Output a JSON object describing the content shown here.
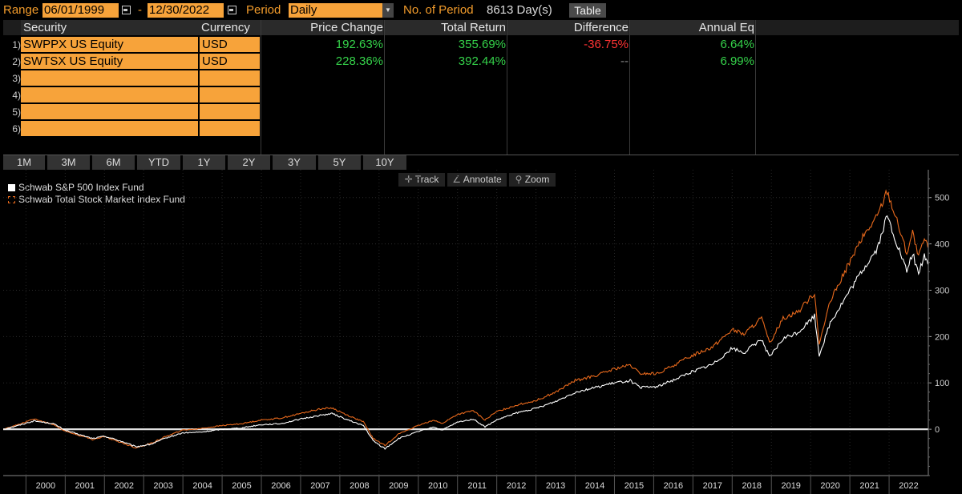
{
  "topbar": {
    "range_label": "Range",
    "start_date": "06/01/1999",
    "dash": "-",
    "end_date": "12/30/2022",
    "period_label": "Period",
    "period_value": "Daily",
    "num_period_label": "No. of Period",
    "num_period_value": "8613 Day(s)",
    "table_button": "Table"
  },
  "table": {
    "headers": [
      "Security",
      "Currency",
      "Price Change",
      "Total Return",
      "Difference",
      "Annual Eq"
    ],
    "rows": [
      {
        "num": "1)",
        "security": "SWPPX US Equity",
        "currency": "USD",
        "price_change": "192.63%",
        "total_return": "355.69%",
        "difference": "-36.75%",
        "annual_eq": "6.64%"
      },
      {
        "num": "2)",
        "security": "SWTSX US Equity",
        "currency": "USD",
        "price_change": "228.36%",
        "total_return": "392.44%",
        "difference": "--",
        "annual_eq": "6.99%"
      },
      {
        "num": "3)",
        "security": "",
        "currency": ""
      },
      {
        "num": "4)",
        "security": "",
        "currency": ""
      },
      {
        "num": "5)",
        "security": "",
        "currency": ""
      },
      {
        "num": "6)",
        "security": "",
        "currency": ""
      }
    ]
  },
  "period_buttons": [
    "1M",
    "3M",
    "6M",
    "YTD",
    "1Y",
    "2Y",
    "3Y",
    "5Y",
    "10Y"
  ],
  "chart_tools": {
    "track": "Track",
    "annotate": "Annotate",
    "zoom": "Zoom"
  },
  "colors": {
    "orange": "#f7a33a",
    "line_white": "#ffffff",
    "line_orange": "#e8691c",
    "green": "#35d24a",
    "red": "#ff3333"
  },
  "chart_data": {
    "type": "line",
    "title": "",
    "ylabel": "",
    "xlabel": "",
    "ylim": [
      -100,
      560
    ],
    "xlim": [
      1999.42,
      2023.0
    ],
    "yticks": [
      0,
      100,
      200,
      300,
      400,
      500
    ],
    "xticks": [
      "2000",
      "2001",
      "2002",
      "2003",
      "2004",
      "2005",
      "2006",
      "2007",
      "2008",
      "2009",
      "2010",
      "2011",
      "2012",
      "2013",
      "2014",
      "2015",
      "2016",
      "2017",
      "2018",
      "2019",
      "2020",
      "2021",
      "2022"
    ],
    "legend_position": "top-left",
    "series": [
      {
        "name": "Schwab S&P 500 Index Fund",
        "color": "#ffffff",
        "points": [
          [
            1999.42,
            0
          ],
          [
            1999.8,
            8
          ],
          [
            2000.2,
            18
          ],
          [
            2000.7,
            12
          ],
          [
            2001.0,
            -2
          ],
          [
            2001.3,
            -10
          ],
          [
            2001.7,
            -20
          ],
          [
            2002.0,
            -15
          ],
          [
            2002.4,
            -25
          ],
          [
            2002.8,
            -38
          ],
          [
            2003.2,
            -32
          ],
          [
            2003.6,
            -18
          ],
          [
            2004.0,
            -8
          ],
          [
            2004.5,
            -6
          ],
          [
            2005.0,
            0
          ],
          [
            2005.5,
            3
          ],
          [
            2006.0,
            10
          ],
          [
            2006.5,
            12
          ],
          [
            2007.0,
            22
          ],
          [
            2007.5,
            30
          ],
          [
            2007.8,
            34
          ],
          [
            2008.2,
            20
          ],
          [
            2008.6,
            8
          ],
          [
            2008.85,
            -25
          ],
          [
            2009.15,
            -42
          ],
          [
            2009.5,
            -20
          ],
          [
            2010.0,
            -5
          ],
          [
            2010.4,
            5
          ],
          [
            2010.6,
            -2
          ],
          [
            2011.0,
            15
          ],
          [
            2011.4,
            22
          ],
          [
            2011.7,
            5
          ],
          [
            2012.0,
            20
          ],
          [
            2012.5,
            35
          ],
          [
            2013.0,
            45
          ],
          [
            2013.5,
            60
          ],
          [
            2014.0,
            80
          ],
          [
            2014.5,
            90
          ],
          [
            2015.0,
            100
          ],
          [
            2015.4,
            105
          ],
          [
            2015.65,
            90
          ],
          [
            2016.1,
            92
          ],
          [
            2016.6,
            110
          ],
          [
            2017.0,
            125
          ],
          [
            2017.5,
            140
          ],
          [
            2018.0,
            175
          ],
          [
            2018.3,
            165
          ],
          [
            2018.75,
            195
          ],
          [
            2018.95,
            155
          ],
          [
            2019.3,
            195
          ],
          [
            2019.7,
            210
          ],
          [
            2020.1,
            245
          ],
          [
            2020.22,
            160
          ],
          [
            2020.5,
            230
          ],
          [
            2020.9,
            285
          ],
          [
            2021.3,
            340
          ],
          [
            2021.7,
            390
          ],
          [
            2021.95,
            460
          ],
          [
            2022.2,
            400
          ],
          [
            2022.45,
            340
          ],
          [
            2022.6,
            380
          ],
          [
            2022.75,
            335
          ],
          [
            2022.9,
            375
          ],
          [
            2022.99,
            356
          ]
        ]
      },
      {
        "name": "Schwab Total Stock Market Index Fund",
        "color": "#e8691c",
        "points": [
          [
            1999.42,
            0
          ],
          [
            1999.8,
            10
          ],
          [
            2000.2,
            22
          ],
          [
            2000.7,
            10
          ],
          [
            2001.0,
            -4
          ],
          [
            2001.3,
            -12
          ],
          [
            2001.7,
            -22
          ],
          [
            2002.0,
            -16
          ],
          [
            2002.4,
            -28
          ],
          [
            2002.8,
            -40
          ],
          [
            2003.2,
            -30
          ],
          [
            2003.6,
            -14
          ],
          [
            2004.0,
            -2
          ],
          [
            2004.5,
            2
          ],
          [
            2005.0,
            8
          ],
          [
            2005.5,
            12
          ],
          [
            2006.0,
            20
          ],
          [
            2006.5,
            24
          ],
          [
            2007.0,
            34
          ],
          [
            2007.5,
            44
          ],
          [
            2007.8,
            46
          ],
          [
            2008.2,
            30
          ],
          [
            2008.6,
            16
          ],
          [
            2008.85,
            -20
          ],
          [
            2009.15,
            -35
          ],
          [
            2009.5,
            -10
          ],
          [
            2010.0,
            8
          ],
          [
            2010.4,
            20
          ],
          [
            2010.6,
            12
          ],
          [
            2011.0,
            32
          ],
          [
            2011.4,
            40
          ],
          [
            2011.7,
            20
          ],
          [
            2012.0,
            38
          ],
          [
            2012.5,
            52
          ],
          [
            2013.0,
            62
          ],
          [
            2013.5,
            80
          ],
          [
            2014.0,
            105
          ],
          [
            2014.5,
            115
          ],
          [
            2015.0,
            130
          ],
          [
            2015.4,
            138
          ],
          [
            2015.65,
            120
          ],
          [
            2016.1,
            120
          ],
          [
            2016.6,
            142
          ],
          [
            2017.0,
            160
          ],
          [
            2017.5,
            178
          ],
          [
            2018.0,
            215
          ],
          [
            2018.3,
            205
          ],
          [
            2018.75,
            240
          ],
          [
            2018.95,
            185
          ],
          [
            2019.3,
            240
          ],
          [
            2019.7,
            255
          ],
          [
            2020.1,
            295
          ],
          [
            2020.22,
            185
          ],
          [
            2020.5,
            275
          ],
          [
            2020.9,
            345
          ],
          [
            2021.3,
            410
          ],
          [
            2021.7,
            460
          ],
          [
            2021.95,
            515
          ],
          [
            2022.2,
            450
          ],
          [
            2022.45,
            380
          ],
          [
            2022.6,
            425
          ],
          [
            2022.75,
            370
          ],
          [
            2022.9,
            410
          ],
          [
            2022.99,
            392
          ]
        ]
      }
    ]
  }
}
